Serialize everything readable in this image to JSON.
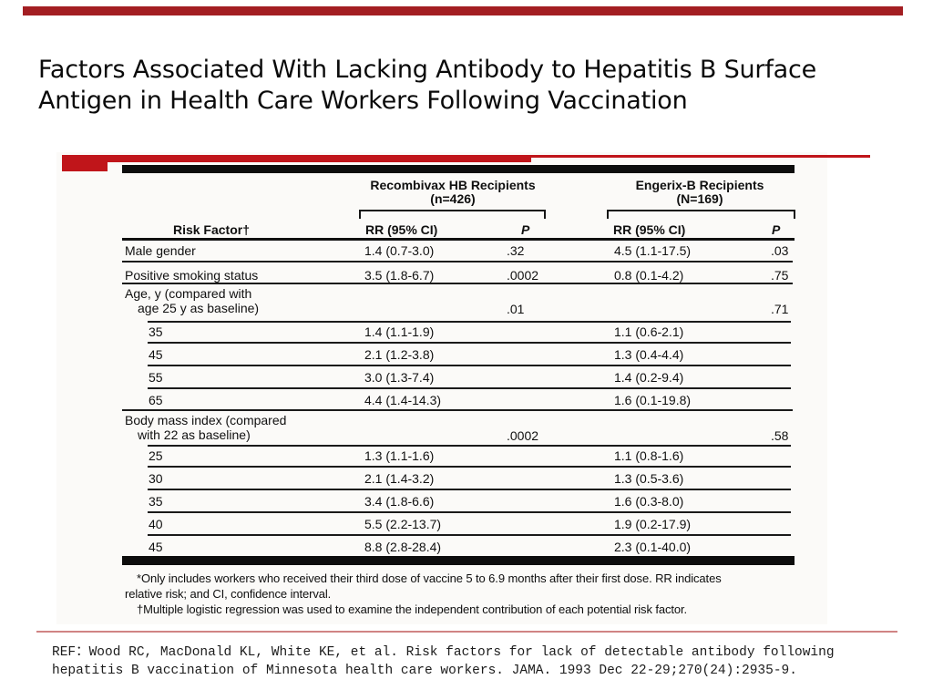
{
  "slide": {
    "title_lines": [
      "Factors Associated With Lacking Antibody to Hepatitis B Surface",
      "Antigen in Health Care Workers Following Vaccination"
    ],
    "reference_lines": [
      "REF：Wood RC, MacDonald KL, White KE, et al. Risk factors for lack of detectable antibody following",
      "hepatitis B vaccination of Minnesota health care workers. JAMA. 1993 Dec 22-29;270(24):2935-9."
    ]
  },
  "table": {
    "group_headers": [
      {
        "title": "Recombivax HB Recipients",
        "n": "(n=426)"
      },
      {
        "title": "Engerix-B Recipients",
        "n": "(N=169)"
      }
    ],
    "column_headers": {
      "risk_factor": "Risk Factor†",
      "rr": "RR (95% CI)",
      "p": "P"
    },
    "rows": [
      {
        "label": "Male gender",
        "rr1": "1.4 (0.7-3.0)",
        "p1": ".32",
        "rr2": "4.5 (1.1-17.5)",
        "p2": ".03"
      },
      {
        "label": "Positive smoking status",
        "rr1": "3.5 (1.8-6.7)",
        "p1": ".0002",
        "rr2": "0.8 (0.1-4.2)",
        "p2": ".75"
      },
      {
        "label": "Age, y (compared with",
        "label2": "age 25 y as baseline)",
        "p1": ".01",
        "p2": ".71"
      },
      {
        "label": "35",
        "indent": true,
        "rr1": "1.4 (1.1-1.9)",
        "rr2": "1.1 (0.6-2.1)"
      },
      {
        "label": "45",
        "indent": true,
        "rr1": "2.1 (1.2-3.8)",
        "rr2": "1.3 (0.4-4.4)"
      },
      {
        "label": "55",
        "indent": true,
        "rr1": "3.0 (1.3-7.4)",
        "rr2": "1.4 (0.2-9.4)"
      },
      {
        "label": "65",
        "indent": true,
        "rr1": "4.4 (1.4-14.3)",
        "rr2": "1.6 (0.1-19.8)"
      },
      {
        "label": "Body mass index (compared",
        "label2": "with 22 as baseline)",
        "p1": ".0002",
        "p2": ".58"
      },
      {
        "label": "25",
        "indent": true,
        "rr1": "1.3 (1.1-1.6)",
        "rr2": "1.1 (0.8-1.6)"
      },
      {
        "label": "30",
        "indent": true,
        "rr1": "2.1 (1.4-3.2)",
        "rr2": "1.3 (0.5-3.6)"
      },
      {
        "label": "35",
        "indent": true,
        "rr1": "3.4 (1.8-6.6)",
        "rr2": "1.6 (0.3-8.0)"
      },
      {
        "label": "40",
        "indent": true,
        "rr1": "5.5 (2.2-13.7)",
        "rr2": "1.9 (0.2-17.9)"
      },
      {
        "label": "45",
        "indent": true,
        "rr1": "8.8 (2.8-28.4)",
        "rr2": "2.3 (0.1-40.0)"
      }
    ],
    "footnote_lines": [
      "*Only includes workers who received their third dose of vaccine 5 to 6.9 months after their first dose. RR indicates",
      "relative risk; and CI, confidence interval.",
      "†Multiple logistic regression was used to examine the independent contribution of each potential risk factor."
    ]
  },
  "colors": {
    "top_bar_red": "#a31e22",
    "accent_red": "#c0151a",
    "divider_pink": "#d08484",
    "table_ink": "#101010"
  }
}
